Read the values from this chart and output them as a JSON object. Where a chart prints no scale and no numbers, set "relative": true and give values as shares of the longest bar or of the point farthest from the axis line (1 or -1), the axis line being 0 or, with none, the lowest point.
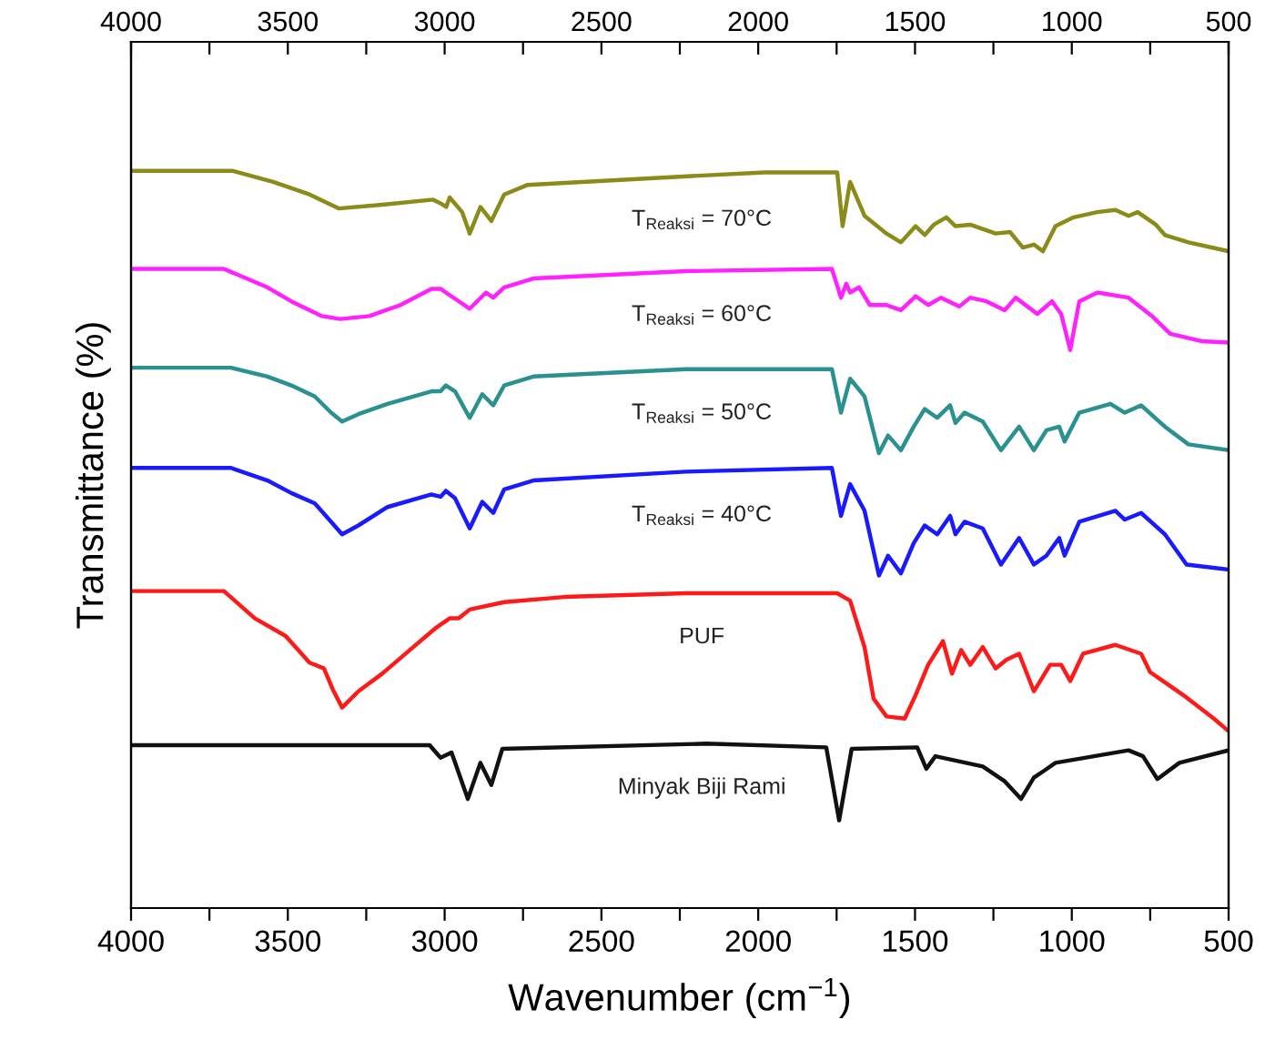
{
  "chart_data": {
    "type": "line",
    "relative": true,
    "xlabel": "Wavenumber (cm$^{−1}$)",
    "ylabel": "Transmittance (%)",
    "xlim": [
      4000,
      500
    ],
    "x2lim": [
      4000,
      500
    ],
    "xticks": [
      4000,
      {
        "value": 3750,
        "label": null
      },
      3500,
      {
        "value": 3250,
        "label": null
      },
      3000,
      {
        "value": 2750,
        "label": null
      },
      2500,
      {
        "value": 2250,
        "label": null
      },
      2000,
      {
        "value": 1750,
        "label": null
      },
      1500,
      {
        "value": 1250,
        "label": null
      },
      1000,
      {
        "value": 750,
        "label": null
      },
      500
    ],
    "x2ticks": [
      4000,
      {
        "value": 3750,
        "label": null
      },
      3500,
      {
        "value": 3250,
        "label": null
      },
      3000,
      {
        "value": 2750,
        "label": null
      },
      2500,
      {
        "value": 2250,
        "label": null
      },
      2000,
      {
        "value": 1750,
        "label": null
      },
      1500,
      {
        "value": 1250,
        "label": null
      },
      1000,
      {
        "value": 750,
        "label": null
      },
      500
    ],
    "grid": false,
    "legend": false,
    "marker": "none",
    "line_style": "solid",
    "series": [
      {
        "name": "T$_{Reaksi}$ = 70°C",
        "color": "#8b8b1a",
        "x": [
          4000,
          3675,
          3547,
          3431,
          3338,
          3199,
          3037,
          3013,
          2995,
          2984,
          2944,
          2920,
          2886,
          2851,
          2810,
          2735,
          2561,
          2212,
          1980,
          1760,
          1748,
          1731,
          1707,
          1661,
          1591,
          1545,
          1498,
          1469,
          1440,
          1400,
          1371,
          1324,
          1243,
          1197,
          1156,
          1121,
          1092,
          1052,
          994,
          919,
          861,
          819,
          790,
          732,
          703,
          628,
          500
        ],
        "values": [
          1.0,
          1.0,
          0.985,
          0.968,
          0.949,
          0.954,
          0.961,
          0.956,
          0.951,
          0.964,
          0.944,
          0.915,
          0.951,
          0.932,
          0.968,
          0.981,
          0.985,
          0.993,
          0.998,
          0.998,
          0.998,
          0.925,
          0.985,
          0.939,
          0.915,
          0.903,
          0.925,
          0.913,
          0.927,
          0.937,
          0.925,
          0.927,
          0.915,
          0.917,
          0.896,
          0.9,
          0.891,
          0.925,
          0.937,
          0.944,
          0.947,
          0.939,
          0.944,
          0.927,
          0.913,
          0.903,
          0.891
        ]
      },
      {
        "name": "T$_{Reaksi}$ = 60°C",
        "color": "#ff22ff",
        "x": [
          4000,
          3704,
          3565,
          3489,
          3391,
          3333,
          3240,
          3141,
          3042,
          3013,
          2996,
          2920,
          2868,
          2845,
          2810,
          2717,
          2230,
          1765,
          1736,
          1719,
          1707,
          1678,
          1644,
          1591,
          1545,
          1498,
          1458,
          1417,
          1359,
          1324,
          1272,
          1214,
          1179,
          1110,
          1063,
          1034,
          1005,
          976,
          918,
          819,
          744,
          686,
          587,
          500
        ],
        "values": [
          0.867,
          0.867,
          0.842,
          0.823,
          0.803,
          0.799,
          0.803,
          0.818,
          0.84,
          0.84,
          0.835,
          0.813,
          0.835,
          0.828,
          0.842,
          0.854,
          0.864,
          0.867,
          0.828,
          0.847,
          0.835,
          0.842,
          0.818,
          0.818,
          0.811,
          0.83,
          0.818,
          0.828,
          0.816,
          0.828,
          0.823,
          0.811,
          0.828,
          0.806,
          0.823,
          0.806,
          0.757,
          0.823,
          0.835,
          0.828,
          0.803,
          0.779,
          0.769,
          0.767
        ]
      },
      {
        "name": "T$_{Reaksi}$ = 50°C",
        "color": "#2a9090",
        "x": [
          4000,
          3681,
          3565,
          3489,
          3414,
          3362,
          3327,
          3275,
          3182,
          3042,
          3013,
          2996,
          2967,
          2920,
          2880,
          2845,
          2810,
          2717,
          2230,
          1765,
          1736,
          1707,
          1661,
          1615,
          1586,
          1545,
          1504,
          1469,
          1429,
          1388,
          1371,
          1342,
          1284,
          1226,
          1168,
          1121,
          1081,
          1040,
          1023,
          976,
          877,
          831,
          779,
          703,
          628,
          500
        ],
        "values": [
          0.733,
          0.733,
          0.721,
          0.709,
          0.694,
          0.672,
          0.66,
          0.67,
          0.684,
          0.701,
          0.701,
          0.709,
          0.701,
          0.665,
          0.697,
          0.682,
          0.709,
          0.721,
          0.731,
          0.731,
          0.672,
          0.718,
          0.694,
          0.617,
          0.641,
          0.621,
          0.653,
          0.677,
          0.665,
          0.682,
          0.658,
          0.672,
          0.66,
          0.621,
          0.653,
          0.621,
          0.648,
          0.653,
          0.633,
          0.672,
          0.684,
          0.672,
          0.682,
          0.653,
          0.629,
          0.621
        ]
      },
      {
        "name": "T$_{Reaksi}$ = 40°C",
        "color": "#1a1aff",
        "x": [
          4000,
          3681,
          3565,
          3489,
          3414,
          3362,
          3327,
          3275,
          3182,
          3042,
          3013,
          2996,
          2967,
          2920,
          2880,
          2845,
          2810,
          2717,
          2230,
          1765,
          1736,
          1707,
          1661,
          1615,
          1586,
          1545,
          1504,
          1469,
          1429,
          1388,
          1371,
          1342,
          1284,
          1226,
          1168,
          1121,
          1081,
          1040,
          1023,
          976,
          861,
          831,
          779,
          703,
          634,
          500
        ],
        "values": [
          0.597,
          0.597,
          0.58,
          0.563,
          0.549,
          0.524,
          0.507,
          0.519,
          0.544,
          0.561,
          0.558,
          0.566,
          0.556,
          0.515,
          0.551,
          0.536,
          0.568,
          0.58,
          0.592,
          0.597,
          0.532,
          0.575,
          0.539,
          0.451,
          0.478,
          0.454,
          0.495,
          0.519,
          0.507,
          0.532,
          0.507,
          0.524,
          0.515,
          0.466,
          0.502,
          0.466,
          0.478,
          0.502,
          0.478,
          0.524,
          0.539,
          0.527,
          0.536,
          0.507,
          0.466,
          0.459
        ]
      },
      {
        "name": "PUF",
        "color": "#ff1a1a",
        "x": [
          4000,
          3704,
          3605,
          3507,
          3431,
          3385,
          3356,
          3327,
          3275,
          3199,
          3100,
          3025,
          2984,
          2955,
          2920,
          2810,
          2619,
          2230,
          1748,
          1707,
          1661,
          1632,
          1591,
          1533,
          1498,
          1458,
          1411,
          1382,
          1353,
          1324,
          1284,
          1243,
          1208,
          1168,
          1121,
          1069,
          1034,
          1005,
          964,
          861,
          779,
          750,
          645,
          547,
          500
        ],
        "values": [
          0.43,
          0.43,
          0.393,
          0.369,
          0.333,
          0.325,
          0.296,
          0.272,
          0.294,
          0.318,
          0.354,
          0.381,
          0.393,
          0.393,
          0.405,
          0.415,
          0.422,
          0.427,
          0.427,
          0.417,
          0.354,
          0.284,
          0.26,
          0.257,
          0.289,
          0.33,
          0.362,
          0.318,
          0.35,
          0.33,
          0.354,
          0.325,
          0.337,
          0.345,
          0.294,
          0.33,
          0.33,
          0.308,
          0.345,
          0.357,
          0.345,
          0.32,
          0.289,
          0.257,
          0.24
        ]
      },
      {
        "name": "Minyak Biji Rami",
        "color": "#111111",
        "x": [
          4000,
          3048,
          3013,
          2978,
          2926,
          2886,
          2851,
          2816,
          2166,
          1783,
          1742,
          1702,
          1493,
          1464,
          1435,
          1284,
          1214,
          1162,
          1121,
          1086,
          1052,
          819,
          773,
          727,
          657,
          500
        ],
        "values": [
          0.221,
          0.221,
          0.204,
          0.211,
          0.148,
          0.197,
          0.167,
          0.216,
          0.223,
          0.218,
          0.119,
          0.216,
          0.218,
          0.189,
          0.206,
          0.192,
          0.172,
          0.148,
          0.177,
          0.187,
          0.197,
          0.214,
          0.206,
          0.175,
          0.197,
          0.214
        ]
      }
    ]
  }
}
